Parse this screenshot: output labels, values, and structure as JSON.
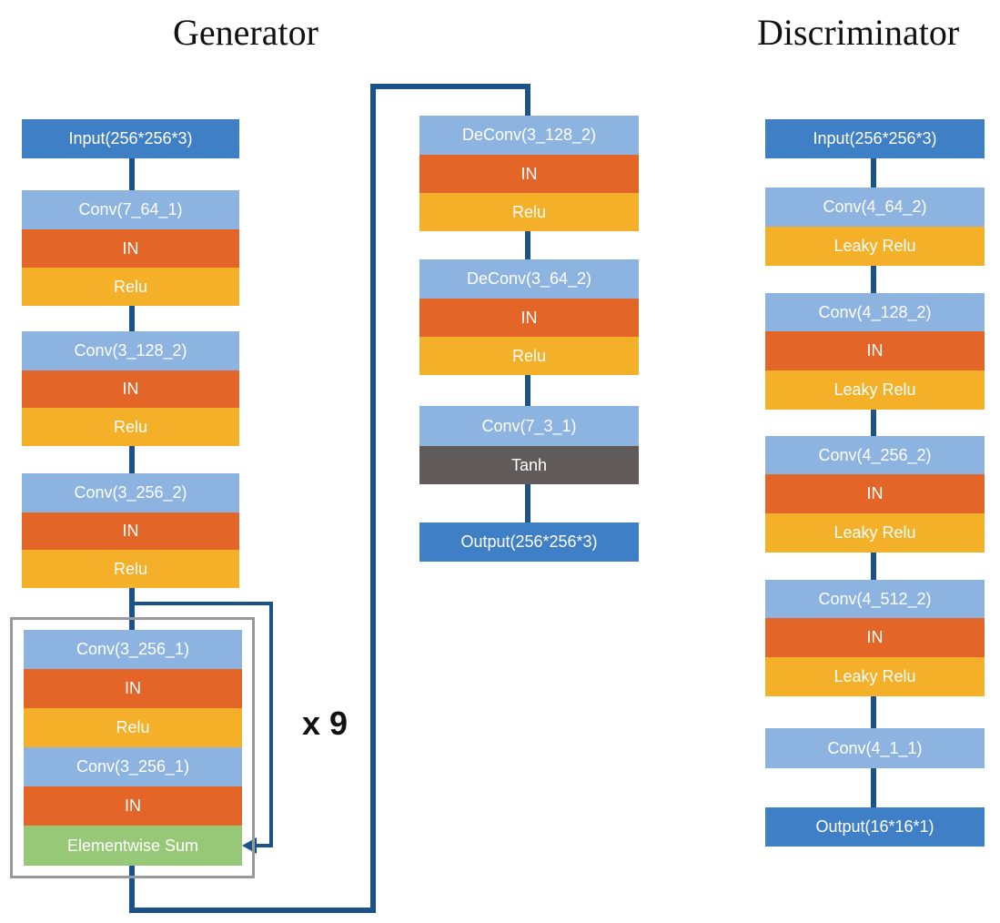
{
  "titles": {
    "generator": "Generator",
    "discriminator": "Discriminator"
  },
  "colors": {
    "io": "#3f7fc5",
    "conv": "#8db4e0",
    "in": "#e36628",
    "relu": "#f5b02a",
    "tanh": "#615b5b",
    "sum": "#97c877",
    "connector": "#1a5289",
    "residual_frame": "#999999"
  },
  "generator": {
    "input": "Input(256*256*3)",
    "blocks": [
      {
        "conv": "Conv(7_64_1)",
        "norm": "IN",
        "act": "Relu"
      },
      {
        "conv": "Conv(3_128_2)",
        "norm": "IN",
        "act": "Relu"
      },
      {
        "conv": "Conv(3_256_2)",
        "norm": "IN",
        "act": "Relu"
      }
    ],
    "residual": {
      "layers": [
        "Conv(3_256_1)",
        "IN",
        "Relu",
        "Conv(3_256_1)",
        "IN",
        "Elementwise Sum"
      ],
      "repeat": "x 9"
    },
    "decoder": [
      {
        "conv": "DeConv(3_128_2)",
        "norm": "IN",
        "act": "Relu"
      },
      {
        "conv": "DeConv(3_64_2)",
        "norm": "IN",
        "act": "Relu"
      },
      {
        "conv": "Conv(7_3_1)",
        "act": "Tanh"
      }
    ],
    "output": "Output(256*256*3)"
  },
  "discriminator": {
    "input": "Input(256*256*3)",
    "blocks": [
      {
        "conv": "Conv(4_64_2)",
        "act": "Leaky Relu"
      },
      {
        "conv": "Conv(4_128_2)",
        "norm": "IN",
        "act": "Leaky Relu"
      },
      {
        "conv": "Conv(4_256_2)",
        "norm": "IN",
        "act": "Leaky Relu"
      },
      {
        "conv": "Conv(4_512_2)",
        "norm": "IN",
        "act": "Leaky Relu"
      },
      {
        "conv": "Conv(4_1_1)"
      }
    ],
    "output": "Output(16*16*1)"
  }
}
